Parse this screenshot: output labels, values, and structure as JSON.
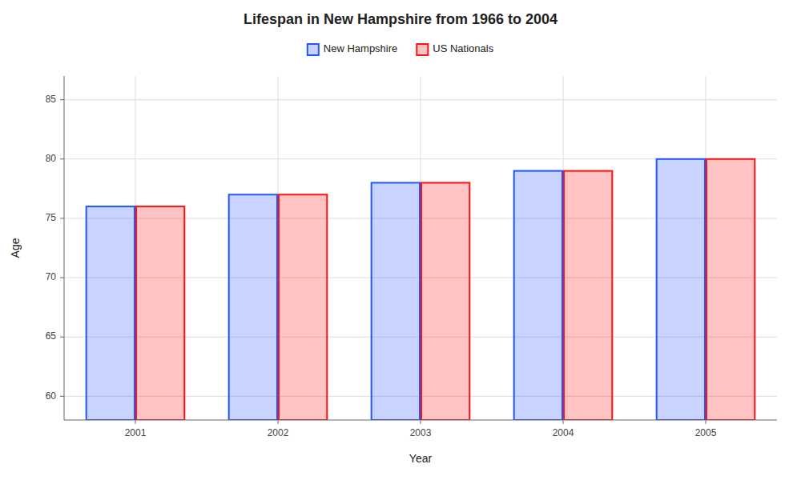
{
  "chart_data": {
    "type": "bar",
    "title": "Lifespan in New Hampshire from 1966 to 2004",
    "x_label": "Year",
    "y_label": "Age",
    "categories": [
      "2001",
      "2002",
      "2003",
      "2004",
      "2005"
    ],
    "series": [
      {
        "name": "New Hampshire",
        "color": "#2255ff",
        "values": [
          76,
          77,
          78,
          79,
          80
        ]
      },
      {
        "name": "US Nationals",
        "color": "#ff1111",
        "values": [
          76,
          77,
          78,
          79,
          80
        ]
      }
    ],
    "ylim": [
      58,
      87
    ],
    "yticks": [
      60,
      65,
      70,
      75,
      80,
      85
    ],
    "grid": true,
    "legend": "top"
  }
}
